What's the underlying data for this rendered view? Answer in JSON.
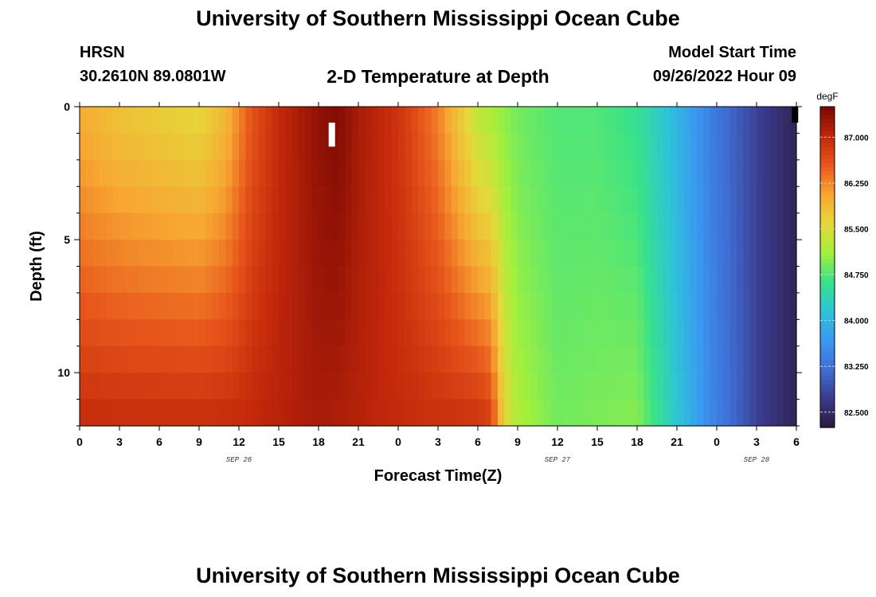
{
  "header": {
    "title": "University of Southern Mississippi Ocean Cube",
    "station": "HRSN",
    "coords": "30.2610N  89.0801W",
    "subtitle": "2-D Temperature at Depth",
    "model_label": "Model Start Time",
    "model_value": "09/26/2022 Hour 09"
  },
  "footer": {
    "title": "University of Southern Mississippi Ocean Cube"
  },
  "colors": {
    "background": "#ffffff",
    "colormap": [
      "#2a1b3d",
      "#3b3a8a",
      "#3f6fd6",
      "#3a98f0",
      "#2ec4d8",
      "#38e28a",
      "#a2f03c",
      "#e6d83a",
      "#f7a733",
      "#e8571c",
      "#c2280a",
      "#7a0804"
    ],
    "marker": "#ffffff"
  },
  "chart_data": {
    "type": "heatmap",
    "title": "2-D Temperature at Depth",
    "xlabel": "Forecast Time(Z)",
    "ylabel": "Depth (ft)",
    "x_unit": "hours since 2022-09-26 00Z",
    "xlim": [
      0,
      54
    ],
    "x_ticks": [
      0,
      3,
      6,
      9,
      12,
      15,
      18,
      21,
      24,
      27,
      30,
      33,
      36,
      39,
      42,
      45,
      48,
      51,
      54
    ],
    "x_tick_labels": [
      "0",
      "3",
      "6",
      "9",
      "12",
      "15",
      "18",
      "21",
      "0",
      "3",
      "6",
      "9",
      "12",
      "15",
      "18",
      "21",
      "0",
      "3",
      "6"
    ],
    "date_labels": [
      {
        "x": 12,
        "text": "SEP 26"
      },
      {
        "x": 36,
        "text": "SEP 27"
      },
      {
        "x": 51,
        "text": "SEP 28"
      }
    ],
    "ylim": [
      0,
      12
    ],
    "y_inverted": true,
    "y_ticks": [
      0,
      5,
      10
    ],
    "y_tick_labels": [
      "0",
      "5",
      "10"
    ],
    "colorbar": {
      "unit": "degF",
      "range": [
        82.25,
        87.5
      ],
      "ticks": [
        87.0,
        86.25,
        85.5,
        84.75,
        84.0,
        83.25,
        82.5
      ],
      "tick_labels": [
        "87.000",
        "86.250",
        "85.500",
        "84.750",
        "84.000",
        "83.250",
        "82.500"
      ]
    },
    "surface_profile": [
      {
        "x": 0,
        "t": 86.0
      },
      {
        "x": 3,
        "t": 85.8
      },
      {
        "x": 6,
        "t": 85.7
      },
      {
        "x": 9,
        "t": 85.6
      },
      {
        "x": 11,
        "t": 85.9
      },
      {
        "x": 13,
        "t": 86.6
      },
      {
        "x": 15,
        "t": 87.0
      },
      {
        "x": 18,
        "t": 87.35
      },
      {
        "x": 19.5,
        "t": 87.45
      },
      {
        "x": 21,
        "t": 87.2
      },
      {
        "x": 24,
        "t": 86.9
      },
      {
        "x": 27,
        "t": 86.3
      },
      {
        "x": 30,
        "t": 85.3
      },
      {
        "x": 33,
        "t": 84.9
      },
      {
        "x": 36,
        "t": 84.75
      },
      {
        "x": 39,
        "t": 84.75
      },
      {
        "x": 42,
        "t": 84.6
      },
      {
        "x": 45,
        "t": 84.0
      },
      {
        "x": 48,
        "t": 83.3
      },
      {
        "x": 51,
        "t": 82.8
      },
      {
        "x": 54,
        "t": 82.4
      }
    ],
    "bottom_profile": [
      {
        "x": 0,
        "t": 87.0
      },
      {
        "x": 6,
        "t": 87.0
      },
      {
        "x": 12,
        "t": 87.0
      },
      {
        "x": 15,
        "t": 87.1
      },
      {
        "x": 18,
        "t": 87.2
      },
      {
        "x": 21,
        "t": 87.1
      },
      {
        "x": 24,
        "t": 87.0
      },
      {
        "x": 27,
        "t": 86.95
      },
      {
        "x": 30,
        "t": 86.95
      },
      {
        "x": 31,
        "t": 86.8
      },
      {
        "x": 32,
        "t": 85.6
      },
      {
        "x": 33,
        "t": 85.2
      },
      {
        "x": 36,
        "t": 84.9
      },
      {
        "x": 39,
        "t": 84.95
      },
      {
        "x": 42,
        "t": 85.0
      },
      {
        "x": 45,
        "t": 84.2
      },
      {
        "x": 48,
        "t": 83.4
      },
      {
        "x": 51,
        "t": 82.8
      },
      {
        "x": 54,
        "t": 82.4
      }
    ],
    "markers": [
      {
        "x": 19.0,
        "depth_start": 0.6,
        "depth_end": 1.5,
        "color": "#ffffff"
      },
      {
        "x": 53.9,
        "depth_start": 0.0,
        "depth_end": 0.6,
        "color": "#000000"
      }
    ]
  }
}
